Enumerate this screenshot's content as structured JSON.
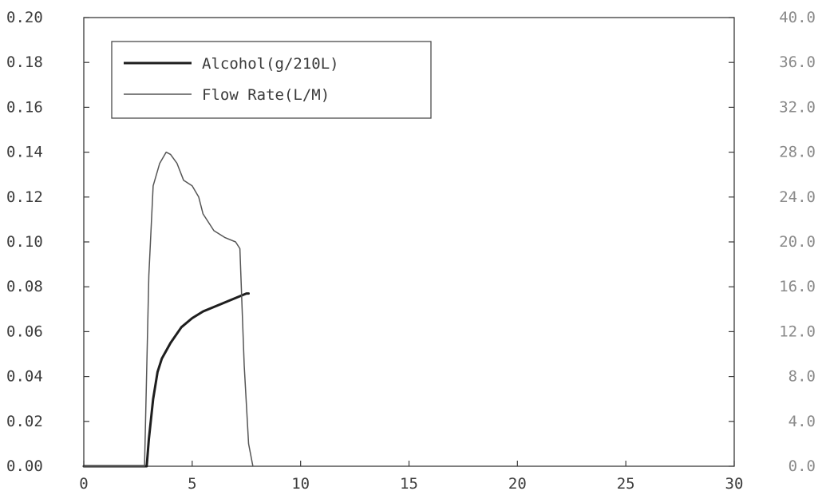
{
  "chart_data": {
    "type": "line",
    "title": "",
    "xlabel": "",
    "ylabel": "",
    "xlim": [
      0,
      30
    ],
    "ylim": [
      0,
      0.2
    ],
    "y2lim": [
      0,
      40
    ],
    "x_ticks": [
      "0",
      "5",
      "10",
      "15",
      "20",
      "25",
      "30"
    ],
    "y_ticks": [
      "0.00",
      "0.02",
      "0.04",
      "0.06",
      "0.08",
      "0.10",
      "0.12",
      "0.14",
      "0.16",
      "0.18",
      "0.20"
    ],
    "y2_ticks": [
      "0.0",
      "4.0",
      "8.0",
      "12.0",
      "16.0",
      "20.0",
      "24.0",
      "28.0",
      "32.0",
      "36.0",
      "40.0"
    ],
    "grid": false,
    "legend_position": "top-left",
    "series": [
      {
        "name": "Alcohol(g/210L)",
        "axis": "left",
        "x": [
          0,
          2.9,
          3.0,
          3.2,
          3.4,
          3.6,
          4.0,
          4.5,
          5.0,
          5.5,
          6.0,
          6.5,
          7.0,
          7.5,
          7.6
        ],
        "values": [
          0,
          0,
          0.012,
          0.03,
          0.042,
          0.048,
          0.055,
          0.062,
          0.066,
          0.069,
          0.071,
          0.073,
          0.075,
          0.077,
          0.077
        ],
        "color": "#1e1e1e"
      },
      {
        "name": "Flow Rate(L/M)",
        "axis": "right",
        "x": [
          0,
          2.8,
          3.0,
          3.2,
          3.5,
          3.8,
          4.0,
          4.3,
          4.6,
          5.0,
          5.3,
          5.5,
          6.0,
          6.5,
          7.0,
          7.2,
          7.4,
          7.6,
          7.8
        ],
        "values": [
          0,
          0,
          17,
          25,
          27,
          28,
          27.8,
          27,
          25.5,
          25,
          24,
          22.5,
          21,
          20.4,
          20,
          19.4,
          9,
          2,
          0
        ],
        "color": "#555555"
      }
    ]
  }
}
